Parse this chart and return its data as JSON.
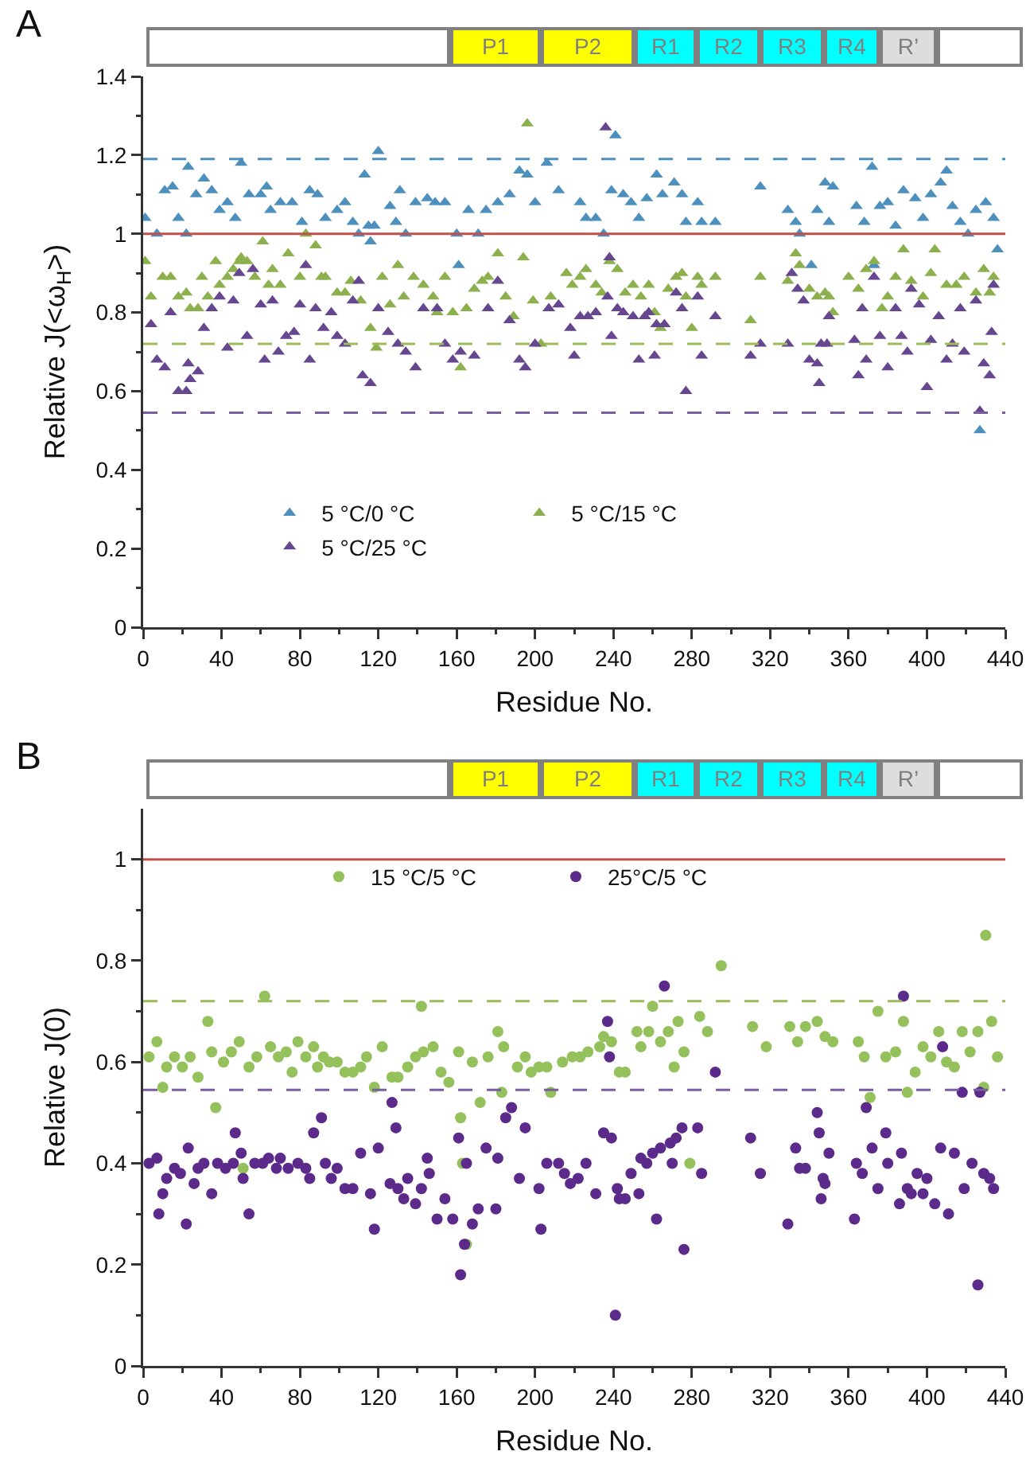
{
  "chart_data": [
    {
      "type": "scatter",
      "title": "A",
      "xlabel": "Residue No.",
      "ylabel": "Relative J(<ω$_{H}$>)",
      "annotations": [
        "P1",
        "P2",
        "R1",
        "R2",
        "R3",
        "R4",
        "R’"
      ],
      "xlim": [
        0,
        440
      ],
      "xticks": [
        0,
        40,
        80,
        120,
        160,
        200,
        240,
        280,
        320,
        360,
        400,
        440
      ],
      "ylim": [
        0,
        1.4
      ],
      "yticks": [
        0,
        0.2,
        0.4,
        0.6,
        0.8,
        1,
        1.2,
        1.4
      ],
      "grid": false,
      "legend": "bottom",
      "marker": "triangle",
      "ref_lines": [
        {
          "axis": "y",
          "value": 1,
          "color": "#c0504d",
          "line_style": "solid"
        },
        {
          "axis": "y",
          "value": 1.19,
          "color": "#4d8fbd",
          "line_style": "dashed"
        },
        {
          "axis": "y",
          "value": 0.72,
          "color": "#9bbb59",
          "line_style": "dashed"
        },
        {
          "axis": "y",
          "value": 0.545,
          "color": "#7a5ca0",
          "line_style": "dashed"
        }
      ],
      "series": [
        {
          "name": "5 °C/0 °C",
          "color": "#4d8fbd",
          "x": [
            1,
            7,
            11,
            15,
            18,
            22,
            23,
            27,
            31,
            35,
            39,
            43,
            47,
            50,
            54,
            60,
            63,
            65,
            70,
            76,
            81,
            85,
            89,
            93,
            99,
            103,
            107,
            110,
            113,
            115,
            116,
            118,
            120,
            126,
            129,
            131,
            134,
            139,
            145,
            149,
            154,
            160,
            161,
            166,
            171,
            175,
            181,
            187,
            192,
            196,
            200,
            206,
            212,
            223,
            226,
            231,
            235,
            239,
            241,
            245,
            249,
            253,
            257,
            262,
            265,
            271,
            275,
            277,
            283,
            285,
            292,
            315,
            329,
            333,
            335,
            341,
            344,
            348,
            350,
            352,
            364,
            368,
            372,
            373,
            376,
            380,
            384,
            388,
            394,
            398,
            402,
            407,
            410,
            413,
            417,
            421,
            425,
            427,
            430,
            434,
            436
          ],
          "values": [
            1.04,
            1.0,
            1.11,
            1.12,
            1.04,
            1.0,
            1.17,
            1.1,
            1.14,
            1.11,
            1.06,
            1.08,
            1.04,
            1.18,
            1.1,
            1.1,
            1.12,
            1.06,
            1.08,
            1.08,
            1.03,
            1.11,
            1.1,
            1.04,
            1.06,
            1.08,
            1.03,
            1.0,
            1.15,
            1.02,
            0.98,
            1.02,
            1.21,
            1.07,
            1.03,
            1.11,
            1.0,
            1.08,
            1.09,
            1.08,
            1.08,
            1.0,
            0.92,
            1.06,
            1.0,
            1.06,
            1.08,
            1.1,
            1.16,
            1.15,
            1.08,
            1.18,
            1.11,
            1.08,
            1.04,
            1.04,
            1.0,
            1.11,
            1.25,
            1.1,
            1.08,
            1.04,
            1.09,
            1.15,
            1.1,
            1.13,
            1.1,
            1.03,
            1.08,
            1.03,
            1.03,
            1.12,
            1.06,
            1.03,
            1.0,
            0.92,
            1.06,
            1.13,
            1.03,
            1.12,
            1.07,
            1.03,
            1.17,
            0.92,
            1.07,
            1.08,
            1.02,
            1.11,
            1.09,
            1.04,
            1.1,
            1.13,
            1.16,
            1.07,
            1.03,
            1.0,
            1.06,
            0.5,
            1.08,
            1.04,
            0.96
          ]
        },
        {
          "name": "5 °C/15 °C",
          "color": "#8cb04d",
          "x": [
            1,
            4,
            10,
            14,
            18,
            22,
            24,
            28,
            30,
            33,
            37,
            39,
            43,
            46,
            49,
            50,
            53,
            57,
            61,
            64,
            66,
            70,
            74,
            80,
            83,
            88,
            91,
            93,
            99,
            103,
            106,
            111,
            116,
            119,
            122,
            126,
            130,
            133,
            138,
            143,
            148,
            150,
            154,
            158,
            162,
            165,
            169,
            173,
            176,
            181,
            185,
            189,
            194,
            196,
            199,
            203,
            208,
            216,
            219,
            223,
            226,
            231,
            234,
            238,
            242,
            246,
            250,
            254,
            258,
            261,
            264,
            268,
            272,
            275,
            277,
            280,
            283,
            285,
            292,
            310,
            315,
            329,
            333,
            335,
            340,
            344,
            348,
            350,
            352,
            360,
            365,
            369,
            373,
            377,
            380,
            384,
            388,
            392,
            398,
            402,
            404,
            410,
            415,
            419,
            425,
            429,
            432,
            434
          ],
          "values": [
            0.93,
            0.84,
            0.89,
            0.89,
            0.84,
            0.85,
            0.81,
            0.81,
            0.89,
            0.84,
            0.93,
            0.87,
            0.89,
            0.91,
            0.93,
            0.94,
            0.93,
            0.89,
            0.98,
            0.87,
            0.91,
            0.87,
            0.95,
            0.89,
            1.0,
            0.97,
            0.89,
            0.89,
            0.85,
            0.85,
            0.88,
            0.83,
            0.76,
            0.71,
            0.89,
            0.82,
            0.92,
            0.84,
            0.89,
            0.87,
            0.84,
            0.8,
            0.89,
            0.8,
            0.66,
            0.81,
            0.86,
            0.88,
            0.89,
            0.95,
            0.84,
            0.79,
            0.94,
            1.28,
            0.83,
            0.72,
            0.84,
            0.9,
            0.87,
            0.89,
            0.91,
            0.87,
            0.85,
            0.93,
            0.91,
            0.85,
            0.87,
            0.84,
            0.87,
            0.8,
            0.76,
            0.86,
            0.89,
            0.9,
            0.84,
            0.76,
            0.89,
            0.87,
            0.89,
            0.78,
            0.89,
            0.88,
            0.95,
            0.92,
            0.86,
            0.84,
            0.85,
            0.84,
            0.8,
            0.89,
            0.86,
            0.91,
            0.93,
            0.81,
            0.84,
            0.89,
            0.96,
            0.88,
            0.84,
            0.9,
            0.96,
            0.87,
            0.87,
            0.89,
            0.85,
            0.91,
            0.85,
            0.89
          ]
        },
        {
          "name": "5 °C/25 °C",
          "color": "#66478f",
          "x": [
            4,
            7,
            11,
            14,
            18,
            22,
            23,
            24,
            28,
            31,
            35,
            39,
            43,
            46,
            49,
            53,
            56,
            60,
            62,
            66,
            69,
            73,
            77,
            80,
            83,
            85,
            88,
            92,
            96,
            99,
            103,
            107,
            110,
            112,
            116,
            120,
            125,
            130,
            134,
            139,
            143,
            150,
            154,
            158,
            162,
            169,
            176,
            181,
            187,
            192,
            195,
            200,
            207,
            212,
            218,
            220,
            223,
            227,
            231,
            237,
            238,
            239,
            242,
            245,
            250,
            253,
            256,
            258,
            261,
            262,
            266,
            272,
            275,
            277,
            283,
            285,
            292,
            310,
            315,
            329,
            331,
            334,
            337,
            340,
            344,
            345,
            346,
            349,
            350,
            363,
            365,
            367,
            369,
            373,
            376,
            380,
            384,
            387,
            390,
            392,
            396,
            400,
            402,
            406,
            410,
            413,
            417,
            419,
            425,
            427,
            429,
            432,
            433,
            434,
            236
          ],
          "values": [
            0.77,
            0.68,
            0.66,
            0.8,
            0.6,
            0.6,
            0.67,
            0.63,
            0.65,
            0.76,
            0.81,
            0.84,
            0.71,
            0.83,
            0.9,
            0.74,
            0.91,
            0.82,
            0.68,
            0.83,
            0.7,
            0.74,
            0.75,
            0.82,
            0.92,
            0.68,
            0.81,
            0.76,
            0.8,
            0.74,
            0.72,
            0.83,
            0.88,
            0.64,
            0.62,
            0.81,
            0.75,
            0.72,
            0.7,
            0.66,
            0.81,
            0.81,
            0.72,
            0.68,
            0.7,
            0.69,
            0.81,
            0.88,
            0.78,
            0.68,
            0.66,
            0.72,
            0.81,
            0.82,
            0.76,
            0.69,
            0.79,
            0.79,
            0.8,
            0.84,
            0.94,
            0.74,
            0.81,
            0.8,
            0.79,
            0.68,
            0.79,
            0.8,
            0.69,
            0.77,
            0.77,
            0.85,
            0.81,
            0.6,
            0.84,
            0.69,
            0.79,
            0.69,
            0.72,
            0.72,
            0.9,
            0.86,
            0.83,
            0.68,
            0.67,
            0.62,
            0.72,
            0.72,
            0.79,
            0.73,
            0.64,
            0.81,
            0.68,
            0.89,
            0.74,
            0.66,
            0.81,
            0.74,
            0.7,
            0.86,
            0.82,
            0.61,
            0.73,
            0.79,
            0.68,
            0.72,
            0.81,
            0.7,
            0.83,
            0.55,
            0.67,
            0.64,
            0.75,
            0.87,
            1.27
          ]
        }
      ]
    },
    {
      "type": "scatter",
      "title": "B",
      "xlabel": "Residue No.",
      "ylabel": "Relative J(0)",
      "annotations": [
        "P1",
        "P2",
        "R1",
        "R2",
        "R3",
        "R4",
        "R’"
      ],
      "xlim": [
        0,
        440
      ],
      "xticks": [
        0,
        40,
        80,
        120,
        160,
        200,
        240,
        280,
        320,
        360,
        400,
        440
      ],
      "ylim": [
        0,
        1.1
      ],
      "yticks": [
        0,
        0.2,
        0.4,
        0.6,
        0.8,
        1
      ],
      "grid": false,
      "legend": "top",
      "marker": "circle",
      "ref_lines": [
        {
          "axis": "y",
          "value": 1,
          "color": "#c0504d",
          "line_style": "solid"
        },
        {
          "axis": "y",
          "value": 0.72,
          "color": "#9bbb59",
          "line_style": "dashed"
        },
        {
          "axis": "y",
          "value": 0.545,
          "color": "#7a5ca0",
          "line_style": "dashed"
        }
      ],
      "series": [
        {
          "name": "15 °C/5 °C",
          "color": "#94c15b",
          "x": [
            3,
            7,
            10,
            12,
            16,
            20,
            24,
            28,
            33,
            35,
            37,
            41,
            45,
            49,
            51,
            54,
            58,
            62,
            65,
            69,
            73,
            76,
            79,
            83,
            87,
            89,
            92,
            95,
            99,
            103,
            107,
            111,
            114,
            118,
            122,
            127,
            130,
            135,
            139,
            142,
            143,
            148,
            152,
            156,
            161,
            162,
            163,
            165,
            168,
            172,
            176,
            181,
            183,
            184,
            191,
            195,
            198,
            202,
            206,
            208,
            214,
            219,
            223,
            227,
            233,
            235,
            239,
            243,
            246,
            252,
            254,
            258,
            260,
            264,
            268,
            271,
            273,
            276,
            279,
            284,
            288,
            295,
            311,
            318,
            330,
            334,
            338,
            344,
            348,
            352,
            365,
            368,
            371,
            375,
            379,
            384,
            388,
            390,
            394,
            398,
            402,
            406,
            410,
            414,
            418,
            422,
            426,
            429,
            430,
            433,
            436
          ],
          "values": [
            0.61,
            0.64,
            0.55,
            0.59,
            0.61,
            0.59,
            0.61,
            0.57,
            0.68,
            0.62,
            0.51,
            0.6,
            0.62,
            0.64,
            0.39,
            0.59,
            0.61,
            0.73,
            0.63,
            0.61,
            0.62,
            0.58,
            0.64,
            0.61,
            0.63,
            0.59,
            0.61,
            0.6,
            0.6,
            0.58,
            0.58,
            0.59,
            0.61,
            0.55,
            0.63,
            0.57,
            0.57,
            0.59,
            0.61,
            0.71,
            0.62,
            0.63,
            0.58,
            0.56,
            0.62,
            0.49,
            0.4,
            0.24,
            0.6,
            0.52,
            0.61,
            0.66,
            0.54,
            0.63,
            0.59,
            0.61,
            0.58,
            0.59,
            0.59,
            0.54,
            0.6,
            0.61,
            0.61,
            0.62,
            0.63,
            0.65,
            0.64,
            0.58,
            0.58,
            0.66,
            0.63,
            0.66,
            0.71,
            0.64,
            0.66,
            0.59,
            0.68,
            0.62,
            0.4,
            0.69,
            0.66,
            0.79,
            0.67,
            0.63,
            0.67,
            0.64,
            0.67,
            0.68,
            0.65,
            0.64,
            0.64,
            0.61,
            0.53,
            0.7,
            0.61,
            0.62,
            0.68,
            0.54,
            0.58,
            0.63,
            0.61,
            0.66,
            0.6,
            0.59,
            0.66,
            0.62,
            0.66,
            0.55,
            0.85,
            0.68,
            0.61
          ]
        },
        {
          "name": "25°C/5 °C",
          "color": "#5c2a8a",
          "x": [
            3,
            7,
            8,
            10,
            12,
            16,
            19,
            22,
            23,
            26,
            28,
            31,
            35,
            38,
            42,
            46,
            47,
            50,
            51,
            54,
            57,
            61,
            64,
            68,
            70,
            74,
            79,
            83,
            85,
            87,
            91,
            93,
            96,
            99,
            103,
            107,
            111,
            116,
            118,
            120,
            126,
            127,
            129,
            130,
            133,
            135,
            139,
            142,
            145,
            146,
            150,
            154,
            158,
            161,
            162,
            164,
            165,
            168,
            171,
            175,
            180,
            181,
            185,
            188,
            192,
            195,
            202,
            203,
            206,
            212,
            215,
            218,
            222,
            226,
            231,
            235,
            237,
            238,
            239,
            241,
            242,
            243,
            246,
            249,
            253,
            254,
            257,
            260,
            262,
            264,
            266,
            269,
            270,
            272,
            275,
            276,
            283,
            285,
            292,
            310,
            315,
            329,
            333,
            335,
            338,
            344,
            345,
            346,
            347,
            348,
            350,
            363,
            364,
            367,
            369,
            372,
            375,
            379,
            380,
            386,
            387,
            388,
            390,
            392,
            395,
            398,
            400,
            404,
            407,
            408,
            411,
            414,
            418,
            419,
            423,
            426,
            427,
            429,
            432,
            434
          ],
          "values": [
            0.4,
            0.41,
            0.3,
            0.34,
            0.37,
            0.39,
            0.38,
            0.28,
            0.43,
            0.36,
            0.39,
            0.4,
            0.34,
            0.4,
            0.39,
            0.4,
            0.46,
            0.42,
            0.37,
            0.3,
            0.4,
            0.4,
            0.41,
            0.39,
            0.41,
            0.39,
            0.4,
            0.39,
            0.37,
            0.46,
            0.49,
            0.4,
            0.37,
            0.39,
            0.35,
            0.35,
            0.42,
            0.34,
            0.27,
            0.43,
            0.36,
            0.52,
            0.47,
            0.35,
            0.33,
            0.37,
            0.32,
            0.35,
            0.41,
            0.38,
            0.29,
            0.33,
            0.29,
            0.45,
            0.18,
            0.24,
            0.4,
            0.28,
            0.31,
            0.43,
            0.31,
            0.41,
            0.49,
            0.51,
            0.37,
            0.47,
            0.35,
            0.27,
            0.4,
            0.4,
            0.38,
            0.36,
            0.37,
            0.4,
            0.34,
            0.46,
            0.68,
            0.61,
            0.45,
            0.1,
            0.35,
            0.33,
            0.33,
            0.38,
            0.34,
            0.41,
            0.4,
            0.42,
            0.29,
            0.43,
            0.75,
            0.44,
            0.4,
            0.45,
            0.47,
            0.23,
            0.47,
            0.38,
            0.58,
            0.45,
            0.38,
            0.28,
            0.43,
            0.39,
            0.39,
            0.5,
            0.46,
            0.33,
            0.37,
            0.36,
            0.42,
            0.29,
            0.4,
            0.38,
            0.51,
            0.43,
            0.35,
            0.46,
            0.4,
            0.32,
            0.42,
            0.73,
            0.35,
            0.34,
            0.38,
            0.34,
            0.37,
            0.32,
            0.43,
            0.63,
            0.3,
            0.42,
            0.54,
            0.35,
            0.4,
            0.16,
            0.54,
            0.38,
            0.37,
            0.35
          ]
        }
      ]
    }
  ]
}
